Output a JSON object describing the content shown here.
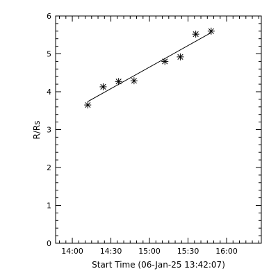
{
  "chart_data": {
    "type": "scatter",
    "xlabel": "Start Time (06-Jan-25 13:42:07)",
    "ylabel": "R/Rs",
    "x_ticks": [
      "14:00",
      "14:30",
      "15:00",
      "15:30",
      "16:00"
    ],
    "x_tick_minutes": [
      840,
      870,
      900,
      930,
      960
    ],
    "xlim_minutes": [
      827,
      987
    ],
    "y_ticks": [
      "0",
      "1",
      "2",
      "3",
      "4",
      "5",
      "6"
    ],
    "ylim": [
      0,
      6
    ],
    "points": [
      {
        "x": "14:12",
        "x_minutes": 852,
        "y": 3.65
      },
      {
        "x": "14:24",
        "x_minutes": 864,
        "y": 4.13
      },
      {
        "x": "14:36",
        "x_minutes": 876,
        "y": 4.27
      },
      {
        "x": "14:48",
        "x_minutes": 888,
        "y": 4.29
      },
      {
        "x": "15:12",
        "x_minutes": 912,
        "y": 4.8
      },
      {
        "x": "15:24",
        "x_minutes": 924,
        "y": 4.92
      },
      {
        "x": "15:36",
        "x_minutes": 936,
        "y": 5.52
      },
      {
        "x": "15:48",
        "x_minutes": 948,
        "y": 5.6
      }
    ],
    "fit_line": [
      {
        "x_minutes": 852,
        "y": 3.74
      },
      {
        "x_minutes": 948,
        "y": 5.56
      }
    ],
    "marker": "asterisk",
    "grid": false
  }
}
